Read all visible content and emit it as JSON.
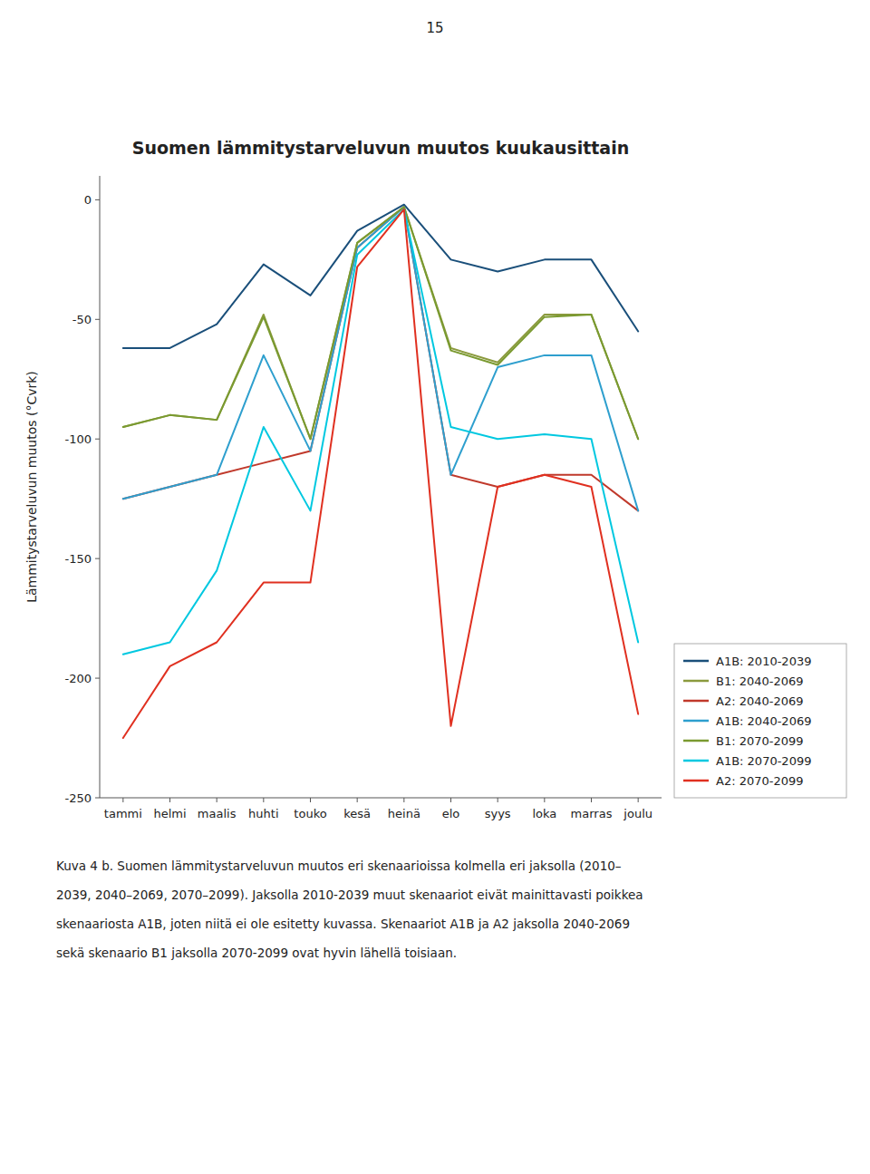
{
  "chart_data": {
    "type": "line",
    "title": "Suomen lämmitystarveluvun muutos kuukausittain",
    "ylabel": "Lämmitystarveluvun muutos (°Cvrk)",
    "categories": [
      "tammi",
      "helmi",
      "maalis",
      "huhti",
      "touko",
      "kesä",
      "heinä",
      "elo",
      "syys",
      "loka",
      "marras",
      "joulu"
    ],
    "series": [
      {
        "name": "A1B: 2010-2039",
        "color": "#1a4f7a",
        "values": [
          -62,
          -62,
          -52,
          -27,
          -40,
          -13,
          -2,
          -25,
          -30,
          -25,
          -25,
          -55
        ]
      },
      {
        "name": "B1: 2040-2069",
        "color": "#8b9a3e",
        "values": [
          -95,
          -90,
          -92,
          -48,
          -100,
          -18,
          -3,
          -62,
          -68,
          -48,
          -48,
          -100
        ]
      },
      {
        "name": "A2: 2040-2069",
        "color": "#c0392b",
        "values": [
          -125,
          -120,
          -115,
          -110,
          -105,
          -20,
          -3,
          -115,
          -120,
          -115,
          -115,
          -130
        ]
      },
      {
        "name": "A1B: 2040-2069",
        "color": "#2e9fce",
        "values": [
          -125,
          -120,
          -115,
          -65,
          -105,
          -20,
          -3,
          -115,
          -70,
          -65,
          -65,
          -130
        ]
      },
      {
        "name": "B1: 2070-2099",
        "color": "#7a9a30",
        "values": [
          -95,
          -90,
          -92,
          -49,
          -100,
          -18,
          -3,
          -63,
          -69,
          -49,
          -48,
          -100
        ]
      },
      {
        "name": "A1B: 2070-2099",
        "color": "#00c8e0",
        "values": [
          -190,
          -185,
          -155,
          -95,
          -130,
          -23,
          -4,
          -95,
          -100,
          -98,
          -100,
          -185
        ]
      },
      {
        "name": "A2: 2070-2099",
        "color": "#e03020",
        "values": [
          -225,
          -195,
          -185,
          -160,
          -160,
          -28,
          -4,
          -220,
          -120,
          -115,
          -120,
          -215
        ]
      }
    ],
    "ylim": [
      -250,
      10
    ],
    "yticks": [
      0,
      -50,
      -100,
      -150,
      -200,
      -250
    ],
    "grid": false,
    "legend": "lower right",
    "annotations": [
      "15",
      "Kuva 4 b. Suomen lämmitystarveluvun muutos eri skenaarioissa kolmella eri jaksolla (2010–",
      "2039, 2040–2069, 2070–2099). Jaksolla 2010-2039 muut skenaariot eivät mainittavasti poikkea",
      "skenaariosta A1B, joten niitä ei ole esitetty kuvassa. Skenaariot A1B ja A2 jaksolla 2040-2069",
      "sekä skenaario B1 jaksolla 2070-2099 ovat hyvin lähellä toisiaan."
    ]
  }
}
